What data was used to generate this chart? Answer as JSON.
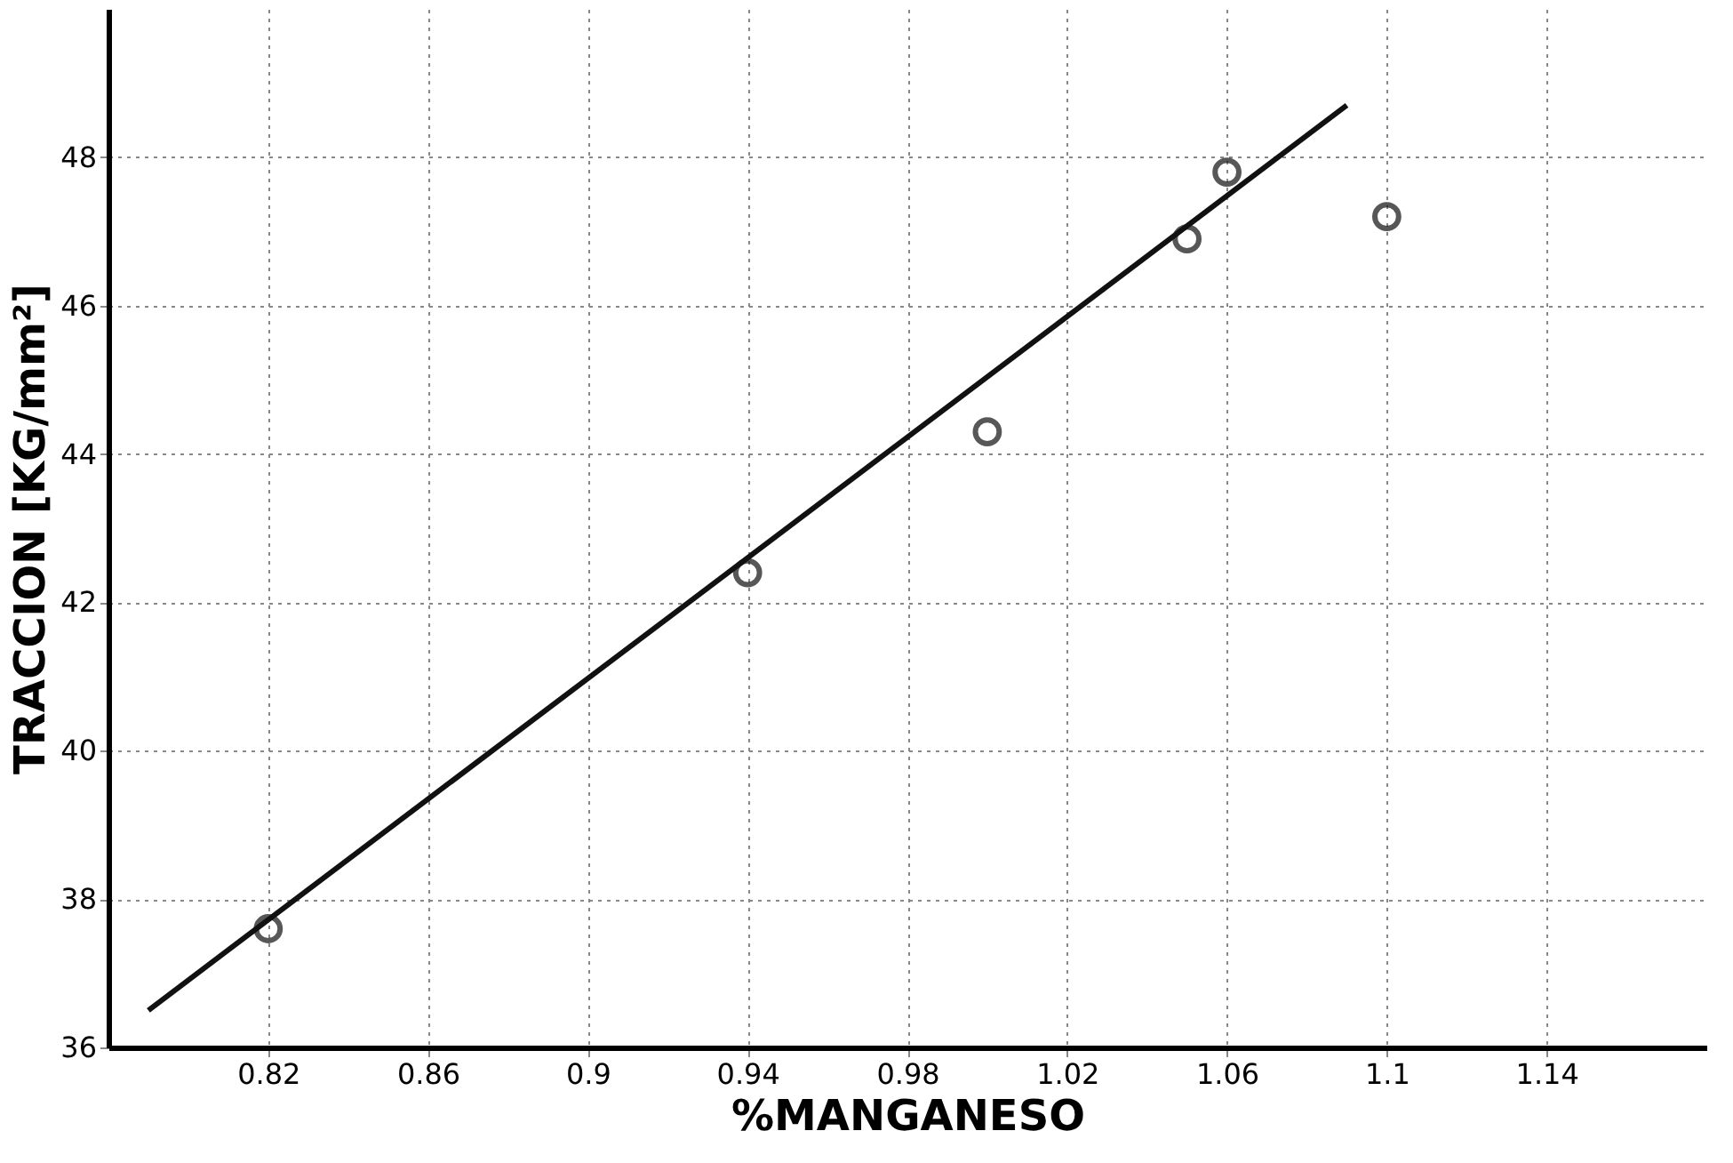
{
  "chart_data": {
    "type": "scatter",
    "xlabel": "%MANGANESO",
    "ylabel": "TRACCION [KG/mm²]",
    "xlim": [
      0.78,
      1.18
    ],
    "ylim": [
      36,
      50
    ],
    "xticks": [
      0.82,
      0.86,
      0.9,
      0.94,
      0.98,
      1.02,
      1.06,
      1.1,
      1.14
    ],
    "yticks": [
      36,
      38,
      40,
      42,
      44,
      46,
      48
    ],
    "grid": true,
    "series": [
      {
        "type": "scatter",
        "marker": "circle",
        "color": "#111111",
        "x": [
          0.82,
          0.94,
          1.0,
          1.05,
          1.06,
          1.1
        ],
        "values": [
          37.6,
          42.4,
          44.3,
          46.9,
          47.8,
          47.2
        ]
      },
      {
        "type": "line",
        "line_style": "solid",
        "color": "#111111",
        "x": [
          0.79,
          1.09
        ],
        "values": [
          36.5,
          48.7
        ]
      }
    ]
  }
}
